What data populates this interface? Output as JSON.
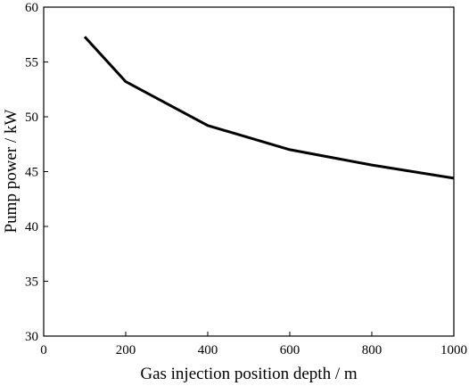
{
  "chart_data": {
    "type": "line",
    "title": "",
    "xlabel": "Gas injection position depth / m",
    "ylabel": "Pump power / kW",
    "xlim": [
      0,
      1000
    ],
    "ylim": [
      30,
      60
    ],
    "xticks": [
      0,
      200,
      400,
      600,
      800,
      1000
    ],
    "yticks": [
      30,
      35,
      40,
      45,
      50,
      55,
      60
    ],
    "grid": false,
    "legend": "none",
    "series": [
      {
        "color": "#000000",
        "x": [
          100,
          200,
          400,
          600,
          800,
          1000
        ],
        "y": [
          57.3,
          53.2,
          49.2,
          47.0,
          45.6,
          44.4
        ]
      }
    ]
  }
}
